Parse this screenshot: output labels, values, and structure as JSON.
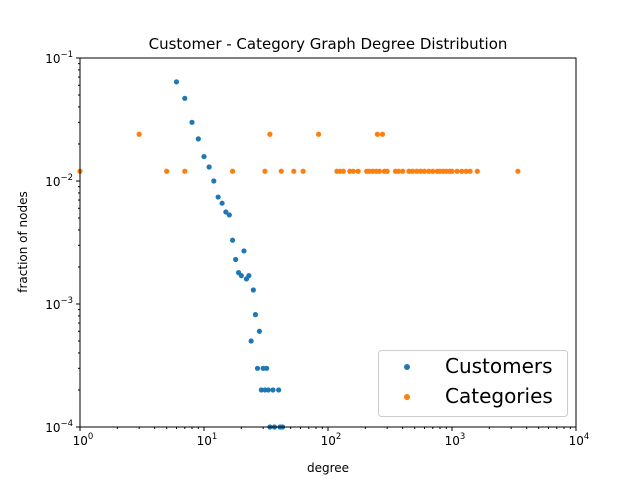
{
  "chart_data": {
    "type": "scatter",
    "title": "Customer - Category Graph Degree Distribution",
    "xlabel": "degree",
    "ylabel": "fraction of nodes",
    "xscale": "log",
    "yscale": "log",
    "xlim": [
      1,
      10000
    ],
    "ylim": [
      0.0001,
      0.1
    ],
    "grid": false,
    "legend_position": "lower-right",
    "x_ticks": [
      {
        "value": 1,
        "base": "10",
        "exp": "0"
      },
      {
        "value": 10,
        "base": "10",
        "exp": "1"
      },
      {
        "value": 100,
        "base": "10",
        "exp": "2"
      },
      {
        "value": 1000,
        "base": "10",
        "exp": "3"
      },
      {
        "value": 10000,
        "base": "10",
        "exp": "4"
      }
    ],
    "y_ticks": [
      {
        "value": 0.0001,
        "base": "10",
        "exp": "−4"
      },
      {
        "value": 0.001,
        "base": "10",
        "exp": "−3"
      },
      {
        "value": 0.01,
        "base": "10",
        "exp": "−2"
      },
      {
        "value": 0.1,
        "base": "10",
        "exp": "−1"
      }
    ],
    "series": [
      {
        "name": "Customers",
        "color": "#1f77b4",
        "points": [
          [
            6,
            0.064
          ],
          [
            7,
            0.047
          ],
          [
            8,
            0.03
          ],
          [
            9,
            0.022
          ],
          [
            10,
            0.0158
          ],
          [
            11,
            0.013
          ],
          [
            12,
            0.01
          ],
          [
            13,
            0.0074
          ],
          [
            14,
            0.0066
          ],
          [
            15,
            0.0056
          ],
          [
            16,
            0.0053
          ],
          [
            17,
            0.0033
          ],
          [
            18,
            0.0023
          ],
          [
            19,
            0.0018
          ],
          [
            20,
            0.0017
          ],
          [
            21,
            0.0027
          ],
          [
            22,
            0.0016
          ],
          [
            23,
            0.0017
          ],
          [
            24,
            0.0005
          ],
          [
            25,
            0.0013
          ],
          [
            26,
            0.00082
          ],
          [
            27,
            0.0003
          ],
          [
            28,
            0.0006
          ],
          [
            29,
            0.0002
          ],
          [
            30,
            0.0003
          ],
          [
            31,
            0.0002
          ],
          [
            32,
            0.0003
          ],
          [
            33,
            0.0002
          ],
          [
            34,
            0.0001
          ],
          [
            36,
            0.0002
          ],
          [
            37,
            0.0001
          ],
          [
            40,
            0.0002
          ],
          [
            41,
            0.0001
          ],
          [
            43,
            0.0001
          ]
        ]
      },
      {
        "name": "Categories",
        "color": "#ff7f0e",
        "points": [
          [
            1,
            0.012
          ],
          [
            3,
            0.024
          ],
          [
            5,
            0.012
          ],
          [
            7,
            0.012
          ],
          [
            17,
            0.012
          ],
          [
            31,
            0.012
          ],
          [
            34,
            0.024
          ],
          [
            42,
            0.012
          ],
          [
            53,
            0.012
          ],
          [
            63,
            0.012
          ],
          [
            84,
            0.024
          ],
          [
            118,
            0.012
          ],
          [
            125,
            0.012
          ],
          [
            133,
            0.012
          ],
          [
            150,
            0.012
          ],
          [
            160,
            0.012
          ],
          [
            175,
            0.012
          ],
          [
            205,
            0.012
          ],
          [
            215,
            0.012
          ],
          [
            230,
            0.012
          ],
          [
            245,
            0.012
          ],
          [
            250,
            0.024
          ],
          [
            260,
            0.012
          ],
          [
            275,
            0.024
          ],
          [
            285,
            0.012
          ],
          [
            300,
            0.012
          ],
          [
            350,
            0.012
          ],
          [
            370,
            0.012
          ],
          [
            400,
            0.012
          ],
          [
            450,
            0.012
          ],
          [
            480,
            0.012
          ],
          [
            520,
            0.012
          ],
          [
            560,
            0.012
          ],
          [
            600,
            0.012
          ],
          [
            650,
            0.012
          ],
          [
            700,
            0.012
          ],
          [
            760,
            0.012
          ],
          [
            800,
            0.012
          ],
          [
            850,
            0.012
          ],
          [
            900,
            0.012
          ],
          [
            960,
            0.012
          ],
          [
            1000,
            0.012
          ],
          [
            1100,
            0.012
          ],
          [
            1200,
            0.012
          ],
          [
            1300,
            0.012
          ],
          [
            1400,
            0.012
          ],
          [
            1600,
            0.012
          ],
          [
            3400,
            0.012
          ]
        ]
      }
    ]
  }
}
